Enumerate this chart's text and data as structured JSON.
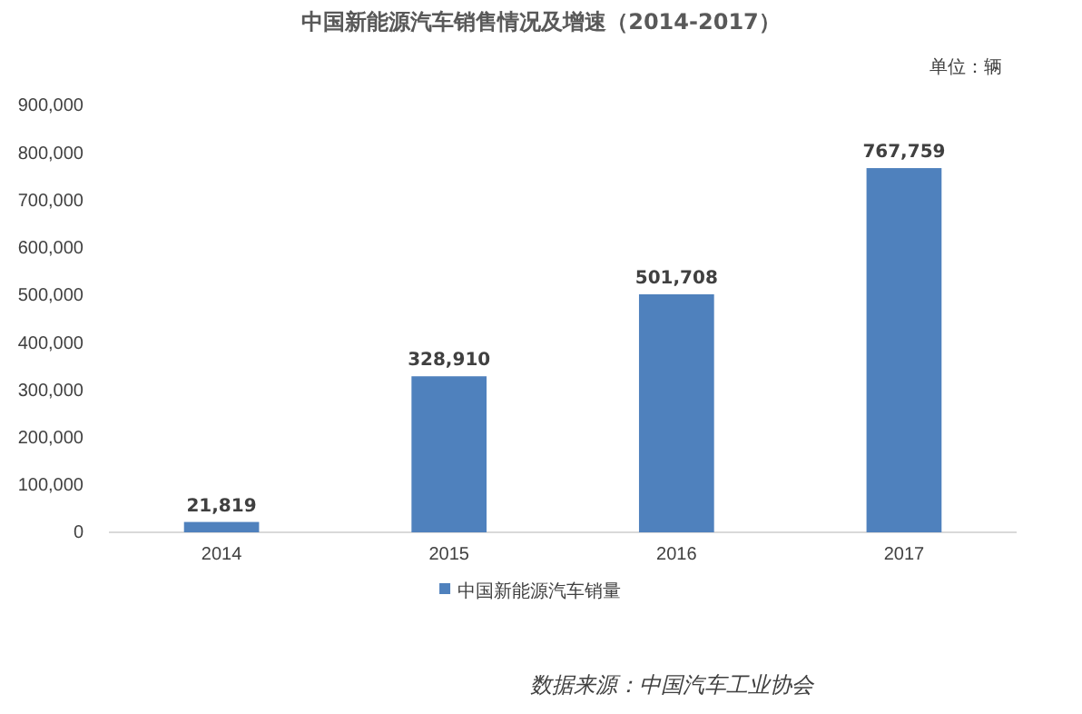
{
  "chart_data": {
    "type": "bar",
    "title": "中国新能源汽车销售情况及增速（2014-2017）",
    "subtitle": "单位：辆",
    "categories": [
      "2014",
      "2015",
      "2016",
      "2017"
    ],
    "series": [
      {
        "name": "中国新能源汽车销量",
        "color": "#4f81bd",
        "values": [
          21819,
          328910,
          501708,
          767759
        ],
        "value_labels": [
          "21,819",
          "328,910",
          "501,708",
          "767,759"
        ]
      }
    ],
    "ylim": [
      0,
      900000
    ],
    "yticks": [
      {
        "value": 0,
        "label": "0"
      },
      {
        "value": 100000,
        "label": "100,000"
      },
      {
        "value": 200000,
        "label": "200,000"
      },
      {
        "value": 300000,
        "label": "300,000"
      },
      {
        "value": 400000,
        "label": "400,000"
      },
      {
        "value": 500000,
        "label": "500,000"
      },
      {
        "value": 600000,
        "label": "600,000"
      },
      {
        "value": 700000,
        "label": "700,000"
      },
      {
        "value": 800000,
        "label": "800,000"
      },
      {
        "value": 900000,
        "label": "900,000"
      }
    ],
    "legend": "bottom",
    "grid": false,
    "annotations": [
      "数据来源：中国汽车工业协会"
    ]
  }
}
